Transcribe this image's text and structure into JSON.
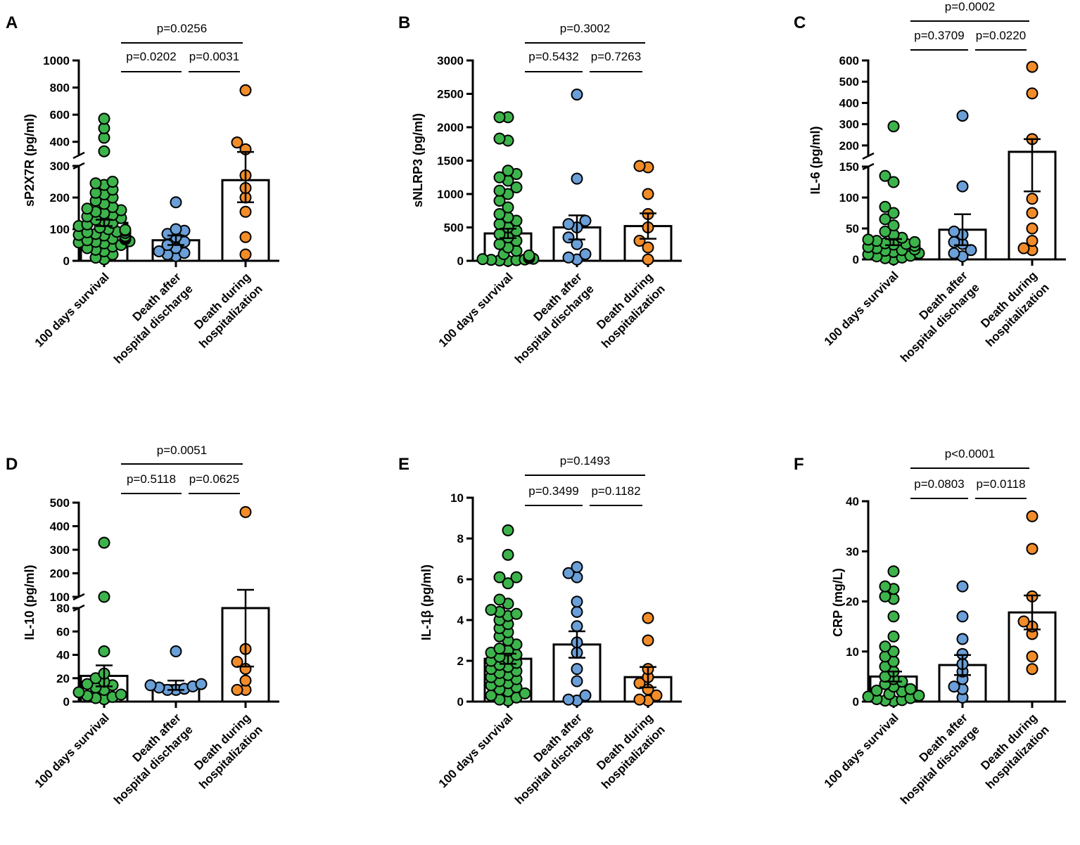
{
  "figure": {
    "category_labels": [
      [
        "100 days survival"
      ],
      [
        "Death after",
        "hospital discharge"
      ],
      [
        "Death during",
        "hospitalization"
      ]
    ],
    "colors": {
      "survival": "#3cb44b",
      "after_discharge": "#6a9fd8",
      "during_hosp": "#f28c28",
      "outline": "#000000",
      "bar_fill": "#ffffff"
    }
  },
  "chart_data": [
    {
      "panel": "A",
      "type": "bar",
      "ylabel": "sP2X7R (pg/ml)",
      "ylim": [
        0,
        1000
      ],
      "axis_break": [
        300,
        300
      ],
      "yticks_lower": [
        "0",
        "100",
        "200",
        "300"
      ],
      "yticks_upper": [
        "400",
        "600",
        "800",
        "1000"
      ],
      "tick_values_lower": [
        0,
        100,
        200,
        300
      ],
      "tick_values_upper": [
        400,
        600,
        800,
        1000
      ],
      "categories": [
        "100 days survival",
        "Death after hospital discharge",
        "Death during hospitalization"
      ],
      "bar_means": [
        120,
        65,
        255
      ],
      "sem": [
        10,
        15,
        70
      ],
      "points": [
        [
          5,
          10,
          20,
          30,
          35,
          40,
          45,
          50,
          55,
          58,
          60,
          62,
          65,
          68,
          70,
          72,
          75,
          78,
          80,
          82,
          85,
          88,
          90,
          92,
          95,
          98,
          100,
          105,
          110,
          115,
          120,
          125,
          130,
          135,
          140,
          145,
          150,
          155,
          160,
          165,
          170,
          180,
          190,
          200,
          210,
          215,
          225,
          240,
          245,
          250,
          330,
          430,
          500,
          570
        ],
        [
          15,
          20,
          25,
          30,
          40,
          50,
          60,
          75,
          85,
          95,
          100,
          185
        ],
        [
          20,
          75,
          155,
          200,
          230,
          270,
          345,
          395,
          780
        ]
      ],
      "comparisons": [
        {
          "pair": [
            0,
            1
          ],
          "label": "p=0.0202"
        },
        {
          "pair": [
            1,
            2
          ],
          "label": "p=0.0031"
        },
        {
          "pair": [
            0,
            2
          ],
          "label": "p=0.0256"
        }
      ]
    },
    {
      "panel": "B",
      "type": "bar",
      "ylabel": "sNLRP3 (pg/ml)",
      "ylim": [
        0,
        3000
      ],
      "yticks": [
        "0",
        "500",
        "1000",
        "1500",
        "2000",
        "2500",
        "3000"
      ],
      "tick_values": [
        0,
        500,
        1000,
        1500,
        2000,
        2500,
        3000
      ],
      "categories": [
        "100 days survival",
        "Death after hospital discharge",
        "Death during hospitalization"
      ],
      "bar_means": [
        410,
        500,
        520
      ],
      "sem": [
        70,
        180,
        190
      ],
      "points": [
        [
          0,
          5,
          10,
          15,
          20,
          25,
          30,
          40,
          50,
          60,
          80,
          100,
          150,
          200,
          250,
          300,
          350,
          400,
          450,
          500,
          550,
          600,
          650,
          700,
          800,
          900,
          1000,
          1050,
          1100,
          1200,
          1250,
          1300,
          1350,
          1800,
          1830,
          2150,
          2150
        ],
        [
          20,
          50,
          100,
          250,
          350,
          500,
          550,
          600,
          1230,
          2490
        ],
        [
          20,
          200,
          300,
          500,
          700,
          1000,
          1400,
          1420
        ]
      ],
      "comparisons": [
        {
          "pair": [
            0,
            1
          ],
          "label": "p=0.5432"
        },
        {
          "pair": [
            1,
            2
          ],
          "label": "p=0.7263"
        },
        {
          "pair": [
            0,
            2
          ],
          "label": "p=0.3002"
        }
      ]
    },
    {
      "panel": "C",
      "type": "bar",
      "ylabel": "IL-6 (pg/ml)",
      "ylim": [
        0,
        600
      ],
      "axis_break": [
        150,
        150
      ],
      "yticks_lower": [
        "0",
        "50",
        "100",
        "150"
      ],
      "yticks_upper": [
        "200",
        "300",
        "400",
        "500",
        "600"
      ],
      "tick_values_lower": [
        0,
        50,
        100,
        150
      ],
      "tick_values_upper": [
        200,
        300,
        400,
        500,
        600
      ],
      "categories": [
        "100 days survival",
        "Death after hospital discharge",
        "Death during hospitalization"
      ],
      "bar_means": [
        28,
        48,
        170
      ],
      "sem": [
        5,
        25,
        60
      ],
      "points": [
        [
          0,
          2,
          3,
          5,
          6,
          8,
          10,
          12,
          14,
          15,
          16,
          18,
          20,
          22,
          24,
          25,
          26,
          28,
          30,
          32,
          35,
          40,
          45,
          55,
          65,
          75,
          85,
          125,
          135,
          290
        ],
        [
          5,
          10,
          15,
          25,
          28,
          40,
          45,
          118,
          340
        ],
        [
          15,
          18,
          30,
          50,
          75,
          98,
          230,
          445,
          570
        ]
      ],
      "comparisons": [
        {
          "pair": [
            0,
            1
          ],
          "label": "p=0.3709"
        },
        {
          "pair": [
            1,
            2
          ],
          "label": "p=0.0220"
        },
        {
          "pair": [
            0,
            2
          ],
          "label": "p=0.0002"
        }
      ]
    },
    {
      "panel": "D",
      "type": "bar",
      "ylabel": "IL-10 (pg/ml)",
      "ylim": [
        0,
        500
      ],
      "axis_break": [
        80,
        100
      ],
      "yticks_lower": [
        "0",
        "20",
        "40",
        "60",
        "80"
      ],
      "yticks_upper": [
        "100",
        "200",
        "300",
        "400",
        "500"
      ],
      "tick_values_lower": [
        0,
        20,
        40,
        60,
        80
      ],
      "tick_values_upper": [
        100,
        200,
        300,
        400,
        500
      ],
      "categories": [
        "100 days survival",
        "Death after hospital discharge",
        "Death during hospitalization"
      ],
      "bar_means": [
        22,
        14,
        80
      ],
      "sem": [
        9,
        4,
        50
      ],
      "points": [
        [
          2,
          3,
          4,
          5,
          6,
          8,
          10,
          12,
          14,
          15,
          17,
          20,
          24,
          43,
          90,
          330
        ],
        [
          10,
          10,
          11,
          12,
          13,
          14,
          15,
          43
        ],
        [
          10,
          10,
          18,
          28,
          34,
          45,
          460
        ]
      ],
      "comparisons": [
        {
          "pair": [
            0,
            1
          ],
          "label": "p=0.5118"
        },
        {
          "pair": [
            1,
            2
          ],
          "label": "p=0.0625"
        },
        {
          "pair": [
            0,
            2
          ],
          "label": "p=0.0051"
        }
      ]
    },
    {
      "panel": "E",
      "type": "bar",
      "ylabel": "IL-1β (pg/ml)",
      "ylim": [
        0,
        10
      ],
      "yticks": [
        "0",
        "2",
        "4",
        "6",
        "8",
        "10"
      ],
      "tick_values": [
        0,
        2,
        4,
        6,
        8,
        10
      ],
      "categories": [
        "100 days survival",
        "Death after hospital discharge",
        "Death during hospitalization"
      ],
      "bar_means": [
        2.1,
        2.8,
        1.2
      ],
      "sem": [
        0.25,
        0.65,
        0.5
      ],
      "points": [
        [
          0.05,
          0.1,
          0.2,
          0.3,
          0.4,
          0.5,
          0.6,
          0.7,
          0.8,
          0.9,
          1.0,
          1.1,
          1.2,
          1.3,
          1.4,
          1.5,
          1.6,
          1.7,
          1.8,
          1.9,
          2.0,
          2.1,
          2.2,
          2.3,
          2.4,
          2.5,
          2.6,
          2.8,
          3.0,
          3.2,
          3.4,
          3.6,
          3.8,
          4.0,
          4.2,
          4.3,
          4.4,
          4.5,
          4.8,
          5.0,
          5.8,
          6.1,
          6.1,
          7.2,
          8.4
        ],
        [
          0.05,
          0.1,
          0.3,
          1.0,
          1.6,
          2.4,
          2.9,
          3.7,
          4.4,
          4.9,
          6.1,
          6.3,
          6.6
        ],
        [
          0.05,
          0.1,
          0.3,
          0.6,
          0.9,
          1.2,
          1.6,
          3.0,
          4.1
        ]
      ],
      "comparisons": [
        {
          "pair": [
            0,
            1
          ],
          "label": "p=0.3499"
        },
        {
          "pair": [
            1,
            2
          ],
          "label": "p=0.1182"
        },
        {
          "pair": [
            0,
            2
          ],
          "label": "p=0.1493"
        }
      ]
    },
    {
      "panel": "F",
      "type": "bar",
      "ylabel": "CRP (mg/L)",
      "ylim": [
        0,
        40
      ],
      "yticks": [
        "0",
        "10",
        "20",
        "30",
        "40"
      ],
      "tick_values": [
        0,
        10,
        20,
        30,
        40
      ],
      "categories": [
        "100 days survival",
        "Death after hospital discharge",
        "Death during hospitalization"
      ],
      "bar_means": [
        5,
        7.3,
        17.8
      ],
      "sem": [
        1.0,
        2.0,
        3.4
      ],
      "points": [
        [
          0.1,
          0.2,
          0.3,
          0.5,
          0.7,
          1.0,
          1.2,
          1.5,
          2.0,
          2.2,
          2.5,
          3.0,
          3.5,
          4.0,
          4.5,
          5.0,
          6.0,
          7.0,
          8.0,
          9.0,
          10.0,
          11.0,
          13.0,
          17.0,
          20.5,
          21.0,
          22.5,
          23.0,
          26.0
        ],
        [
          0.8,
          2.5,
          3.0,
          4.5,
          6.0,
          7.5,
          9.5,
          12.5,
          17.0,
          23.0
        ],
        [
          6.5,
          9.0,
          13.5,
          15.0,
          16.0,
          21.0,
          30.5,
          37.0
        ]
      ],
      "comparisons": [
        {
          "pair": [
            0,
            1
          ],
          "label": "p=0.0803"
        },
        {
          "pair": [
            1,
            2
          ],
          "label": "p=0.0118"
        },
        {
          "pair": [
            0,
            2
          ],
          "label": "p<0.0001"
        }
      ]
    }
  ]
}
